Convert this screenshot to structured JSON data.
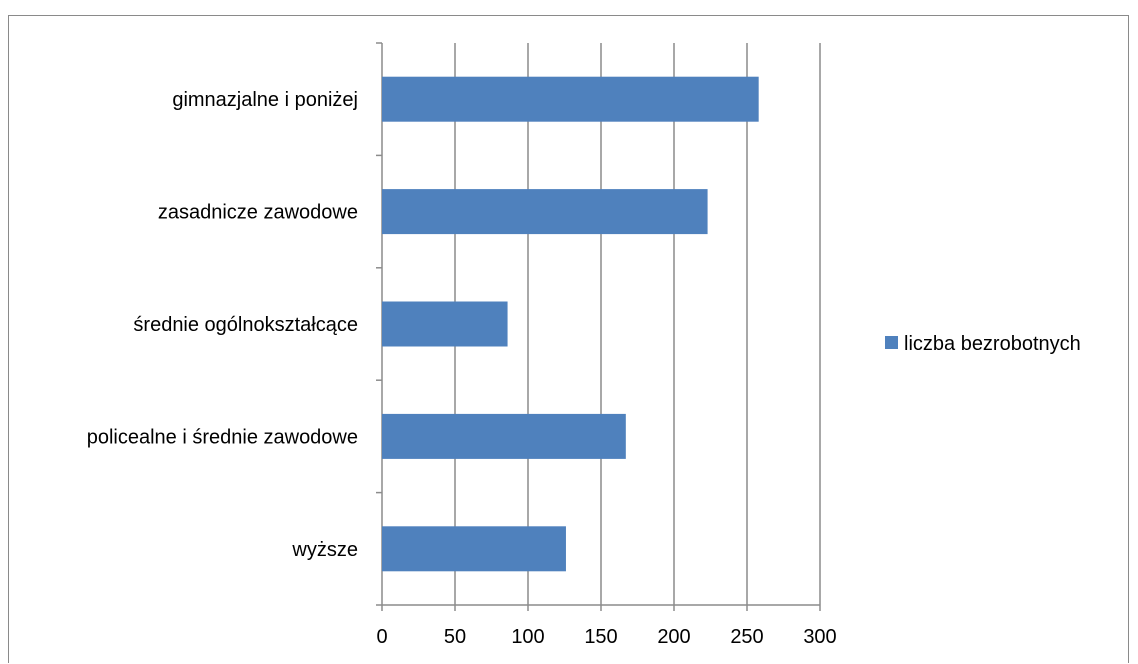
{
  "chart_data": {
    "type": "bar",
    "orientation": "horizontal",
    "categories": [
      "gimnazjalne i poniżej",
      "zasadnicze zawodowe",
      "średnie ogólnokształcące",
      "policealne i średnie zawodowe",
      "wyższe"
    ],
    "series": [
      {
        "name": "liczba bezrobotnych",
        "values": [
          258,
          223,
          86,
          167,
          126
        ],
        "color": "#4f81bd"
      }
    ],
    "xlim": [
      0,
      300
    ],
    "x_ticks": [
      "0",
      "50",
      "100",
      "150",
      "200",
      "250",
      "300"
    ],
    "grid": "vertical",
    "legend_position": "right"
  }
}
